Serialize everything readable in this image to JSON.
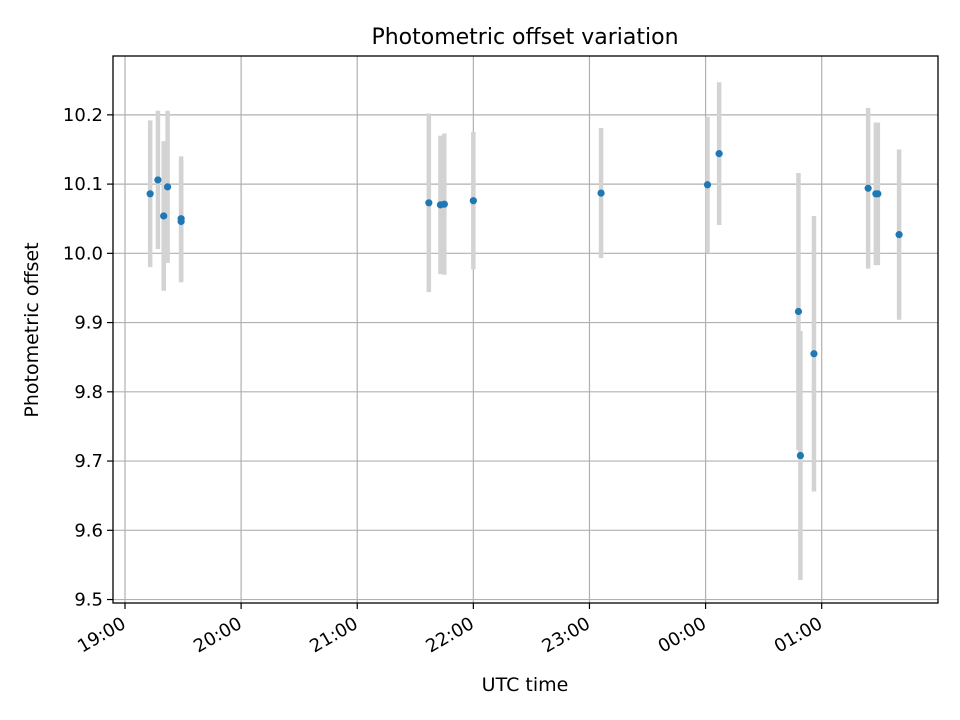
{
  "chart_data": {
    "type": "scatter",
    "title": "Photometric offset variation",
    "xlabel": "UTC time",
    "ylabel": "Photometric offset",
    "xlim": [
      "19:00",
      "01:57"
    ],
    "ylim": [
      9.495,
      10.285
    ],
    "x_ticks": [
      "19:00",
      "20:00",
      "21:00",
      "22:00",
      "23:00",
      "00:00",
      "01:00"
    ],
    "y_ticks": [
      9.5,
      9.6,
      9.7,
      9.8,
      9.9,
      10.0,
      10.1,
      10.2
    ],
    "grid": true,
    "colors": {
      "points": "#1f77b4",
      "errorbars": "#d3d3d3"
    },
    "series": [
      {
        "points": [
          {
            "x": "19:13",
            "y": 10.086,
            "yerr": 0.106
          },
          {
            "x": "19:17",
            "y": 10.106,
            "yerr": 0.1
          },
          {
            "x": "19:20",
            "y": 10.054,
            "yerr": 0.108
          },
          {
            "x": "19:22",
            "y": 10.096,
            "yerr": 0.11
          },
          {
            "x": "19:29",
            "y": 10.05,
            "yerr": 0.09
          },
          {
            "x": "19:29",
            "y": 10.046,
            "yerr": 0.088
          },
          {
            "x": "21:37",
            "y": 10.073,
            "yerr": 0.129
          },
          {
            "x": "21:43",
            "y": 10.07,
            "yerr": 0.1
          },
          {
            "x": "21:45",
            "y": 10.071,
            "yerr": 0.102
          },
          {
            "x": "22:00",
            "y": 10.076,
            "yerr": 0.099
          },
          {
            "x": "23:06",
            "y": 10.087,
            "yerr": 0.094
          },
          {
            "x": "00:01",
            "y": 10.099,
            "yerr": 0.098
          },
          {
            "x": "00:07",
            "y": 10.144,
            "yerr": 0.103
          },
          {
            "x": "00:48",
            "y": 9.916,
            "yerr": 0.2
          },
          {
            "x": "00:49",
            "y": 9.708,
            "yerr": 0.18
          },
          {
            "x": "00:56",
            "y": 9.855,
            "yerr": 0.199
          },
          {
            "x": "01:24",
            "y": 10.094,
            "yerr": 0.116
          },
          {
            "x": "01:28",
            "y": 10.086,
            "yerr": 0.103
          },
          {
            "x": "01:29",
            "y": 10.086,
            "yerr": 0.103
          },
          {
            "x": "01:40",
            "y": 10.027,
            "yerr": 0.123
          }
        ]
      }
    ]
  }
}
